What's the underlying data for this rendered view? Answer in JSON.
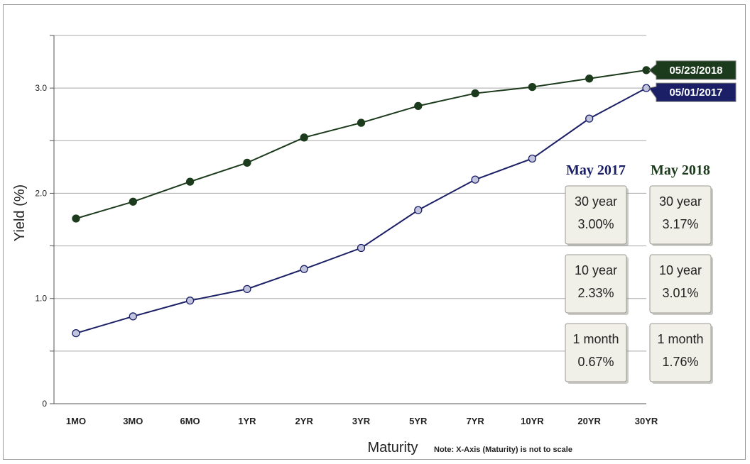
{
  "chart_data": {
    "type": "line",
    "xlabel": "Maturity",
    "ylabel": "Yield (%)",
    "note": "Note: X-Axis (Maturity) is not to scale",
    "categories": [
      "1MO",
      "3MO",
      "6MO",
      "1YR",
      "2YR",
      "3YR",
      "5YR",
      "7YR",
      "10YR",
      "20YR",
      "30YR"
    ],
    "ylim": [
      0,
      3.5
    ],
    "y_ticks": [
      0,
      0.5,
      1.0,
      1.5,
      2.0,
      2.5,
      3.0,
      3.5
    ],
    "y_tick_labels": [
      "0",
      "",
      "1.0",
      "",
      "2.0",
      "",
      "3.0",
      ""
    ],
    "grid": true,
    "series": [
      {
        "name": "05/23/2018",
        "color": "#1c3a1c",
        "marker_fill": "#1c3a1c",
        "values": [
          1.76,
          1.92,
          2.11,
          2.29,
          2.53,
          2.67,
          2.83,
          2.95,
          3.01,
          3.09,
          3.17
        ]
      },
      {
        "name": "05/01/2017",
        "color": "#1a1f66",
        "marker_fill": "#c2c3dc",
        "values": [
          0.67,
          0.83,
          0.98,
          1.09,
          1.28,
          1.48,
          1.84,
          2.13,
          2.33,
          2.71,
          3.0
        ]
      }
    ],
    "summary": {
      "columns": [
        {
          "header": "May 2017",
          "color": "#1a1f66",
          "boxes": [
            {
              "label": "30 year",
              "value": "3.00%"
            },
            {
              "label": "10 year",
              "value": "2.33%"
            },
            {
              "label": "1 month",
              "value": "0.67%"
            }
          ]
        },
        {
          "header": "May 2018",
          "color": "#1c3a1c",
          "boxes": [
            {
              "label": "30 year",
              "value": "3.17%"
            },
            {
              "label": "10 year",
              "value": "3.01%"
            },
            {
              "label": "1 month",
              "value": "1.76%"
            }
          ]
        }
      ]
    }
  }
}
